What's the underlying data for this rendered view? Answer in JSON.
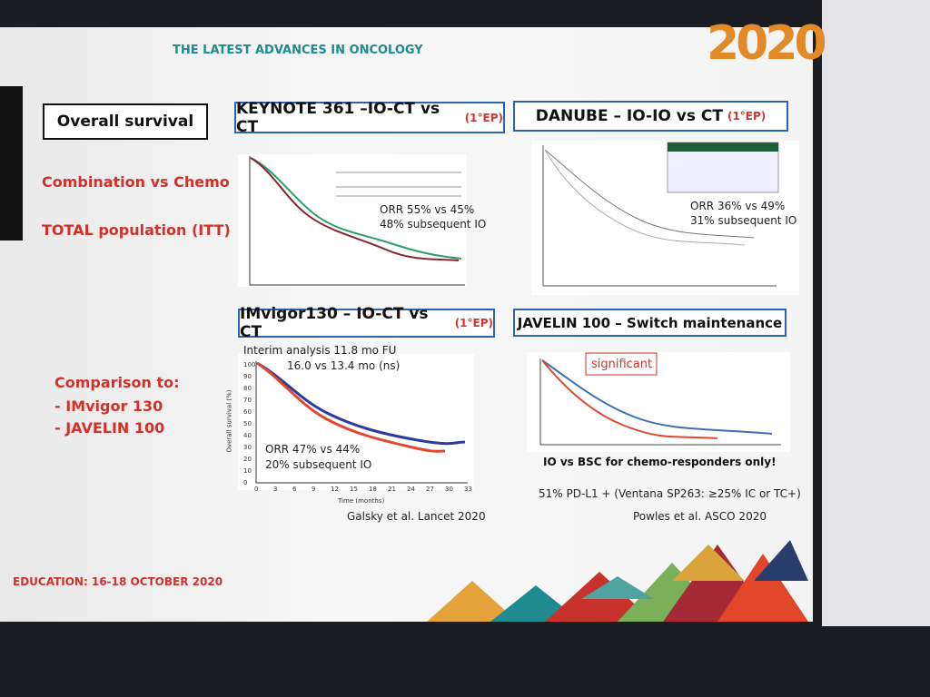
{
  "header": {
    "title": "THE LATEST ADVANCES IN ONCOLOGY",
    "logo": "2020"
  },
  "section_title": "Overall survival",
  "panels": [
    {
      "title": "KEYNOTE 361 –IO-CT vs CT",
      "endpoint": "(1°EP)",
      "notes": [
        "ORR 55% vs 45%",
        "48% subsequent IO"
      ]
    },
    {
      "title": "DANUBE – IO-IO vs CT",
      "endpoint": "(1°EP)",
      "notes": [
        "ORR 36% vs 49%",
        "31% subsequent IO"
      ]
    },
    {
      "title": "IMvigor130 – IO-CT vs CT",
      "endpoint": "(1°EP)",
      "notes": [
        "Interim analysis 11.8 mo FU",
        "16.0 vs 13.4 mo (ns)",
        "ORR 47% vs 44%",
        "20% subsequent IO"
      ],
      "xlabel": "Time (months)",
      "ylabel": "Overall survival (%)",
      "xticks": [
        "0",
        "3",
        "6",
        "9",
        "12",
        "15",
        "18",
        "21",
        "24",
        "27",
        "30",
        "33"
      ],
      "yticks": [
        "0",
        "10",
        "20",
        "30",
        "40",
        "50",
        "60",
        "70",
        "80",
        "90",
        "100"
      ],
      "citation": "Galsky et al. Lancet 2020"
    },
    {
      "title": "JAVELIN 100 – Switch maintenance",
      "notes": [
        "significant",
        "IO vs BSC for chemo-responders only!",
        "51% PD-L1 + (Ventana SP263: ≥25% IC or TC+)"
      ],
      "citation": "Powles et al. ASCO 2020"
    }
  ],
  "left_labels": [
    "Combination vs Chemo",
    "TOTAL population (ITT)"
  ],
  "comparison": {
    "title": "Comparison to:",
    "items": [
      "-  IMvigor 130",
      "-  JAVELIN 100"
    ]
  },
  "footer": "EDUCATION: 16-18 OCTOBER 2020"
}
